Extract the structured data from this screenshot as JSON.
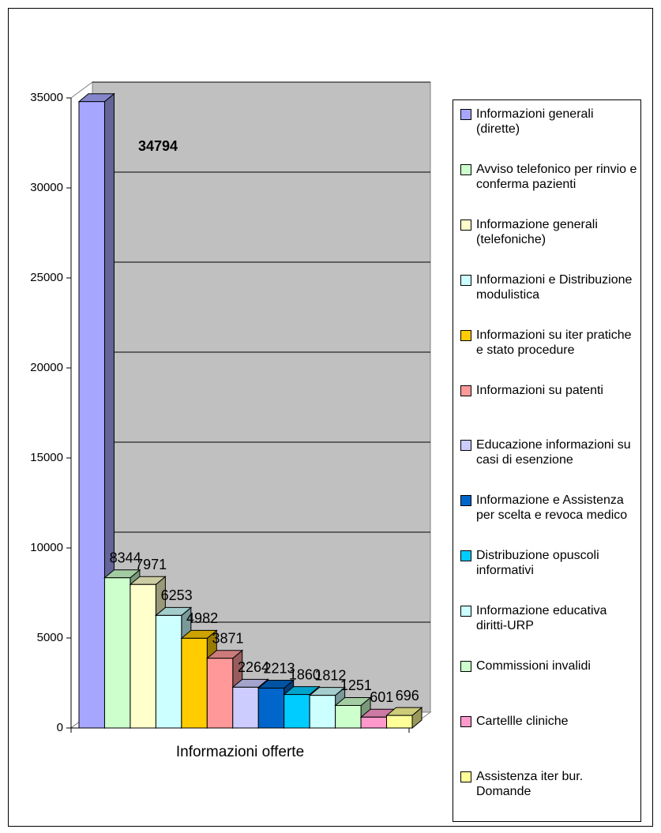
{
  "chart_data": {
    "type": "bar3d",
    "categories": [
      "Informazioni offerte"
    ],
    "ylim": [
      0,
      35000
    ],
    "yticks": [
      0,
      5000,
      10000,
      15000,
      20000,
      25000,
      30000,
      35000
    ],
    "grid": true,
    "legend": "right",
    "series": [
      {
        "name": "Informazioni generali (dirette)",
        "color": "#a6a6ff",
        "values": [
          34794
        ]
      },
      {
        "name": "Avviso telefonico per rinvio e conferma pazienti",
        "color": "#ccffcc",
        "values": [
          8344
        ]
      },
      {
        "name": "Informazione generali (telefoniche)",
        "color": "#ffffcc",
        "values": [
          7971
        ]
      },
      {
        "name": "Informazioni e Distribuzione modulistica",
        "color": "#ccffff",
        "values": [
          6253
        ]
      },
      {
        "name": "Informazioni su iter pratiche e stato procedure",
        "color": "#ffcc00",
        "values": [
          4982
        ]
      },
      {
        "name": "Informazioni su patenti",
        "color": "#ff9999",
        "values": [
          3871
        ]
      },
      {
        "name": "Educazione informazioni su casi di esenzione",
        "color": "#ccccff",
        "values": [
          2264
        ]
      },
      {
        "name": "Informazione e Assistenza per scelta e revoca medico",
        "color": "#0066cc",
        "values": [
          2213
        ]
      },
      {
        "name": "Distribuzione opuscoli informativi",
        "color": "#00ccff",
        "values": [
          1860
        ]
      },
      {
        "name": "Informazione educativa diritti-URP",
        "color": "#ccffff",
        "values": [
          1812
        ]
      },
      {
        "name": "Commissioni invalidi",
        "color": "#ccffcc",
        "values": [
          1251
        ]
      },
      {
        "name": "Cartellle cliniche",
        "color": "#ff99cc",
        "values": [
          601
        ]
      },
      {
        "name": "Assistenza iter bur. Domande",
        "color": "#ffff99",
        "values": [
          696
        ]
      }
    ]
  }
}
